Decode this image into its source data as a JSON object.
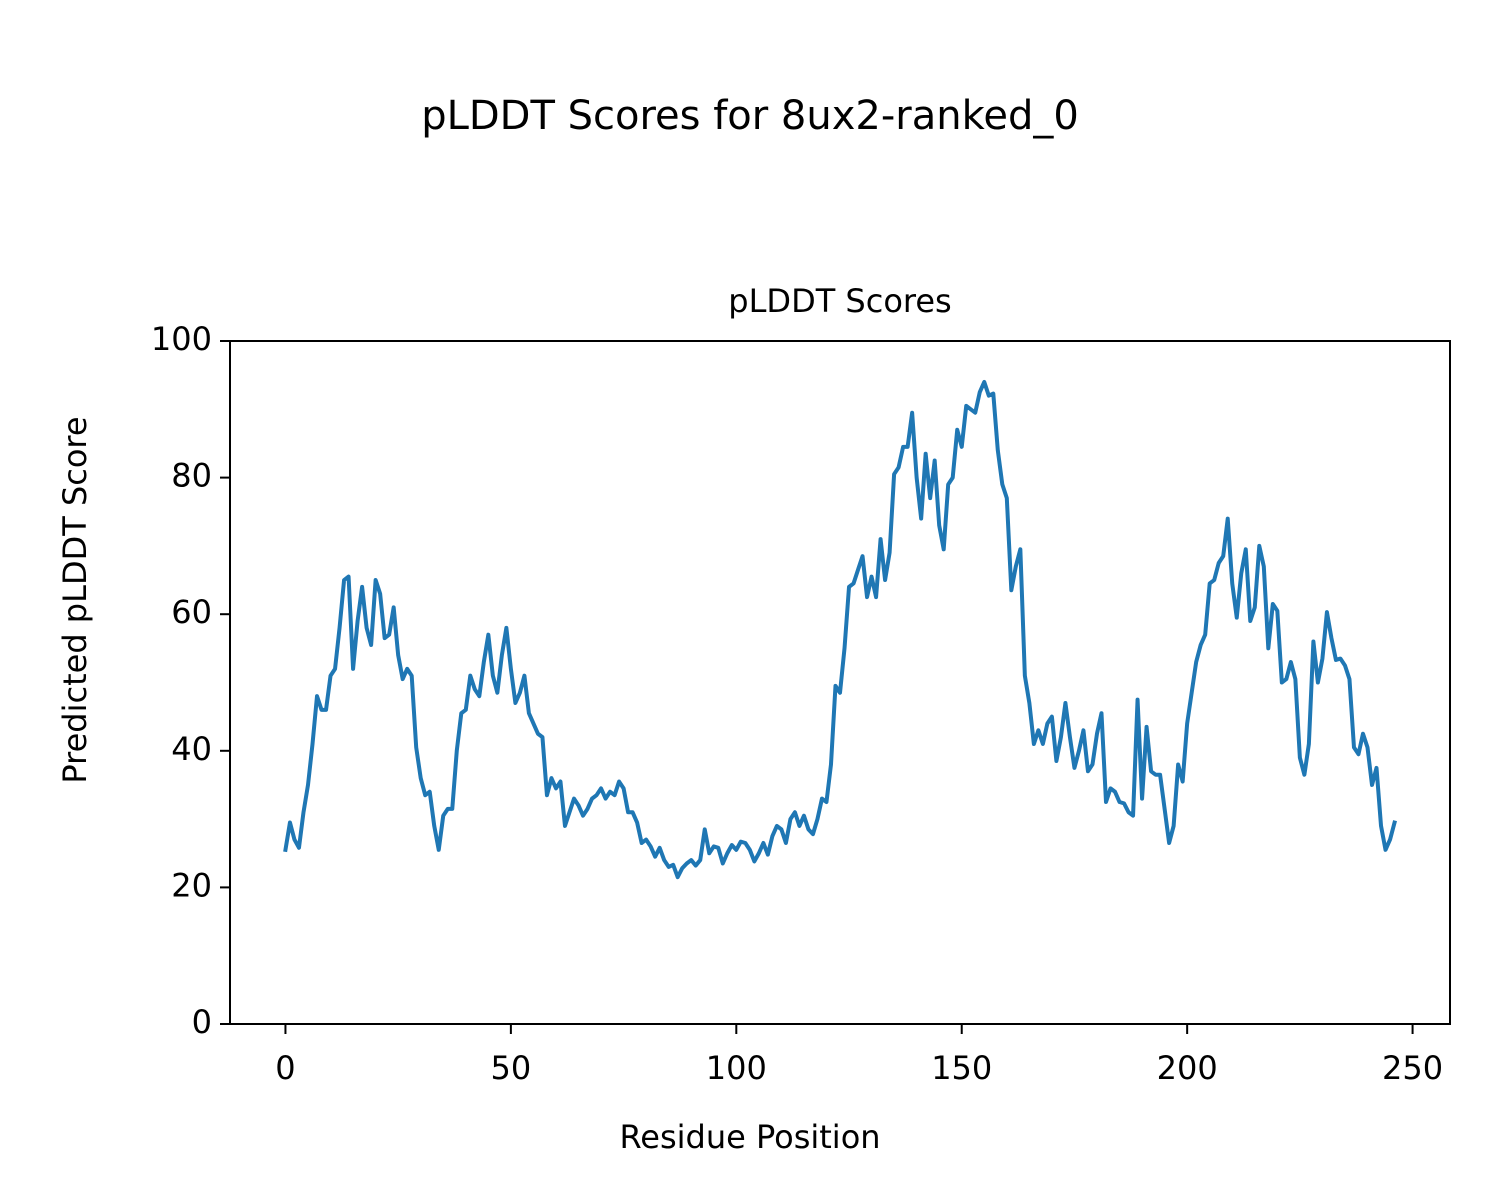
{
  "chart_data": {
    "type": "line",
    "suptitle": "pLDDT Scores for 8ux2-ranked_0",
    "title": "pLDDT Scores",
    "xlabel": "Residue Position",
    "ylabel": "Predicted pLDDT Score",
    "x": [
      0,
      1,
      2,
      3,
      4,
      5,
      6,
      7,
      8,
      9,
      10,
      11,
      12,
      13,
      14,
      15,
      16,
      17,
      18,
      19,
      20,
      21,
      22,
      23,
      24,
      25,
      26,
      27,
      28,
      29,
      30,
      31,
      32,
      33,
      34,
      35,
      36,
      37,
      38,
      39,
      40,
      41,
      42,
      43,
      44,
      45,
      46,
      47,
      48,
      49,
      50,
      51,
      52,
      53,
      54,
      55,
      56,
      57,
      58,
      59,
      60,
      61,
      62,
      63,
      64,
      65,
      66,
      67,
      68,
      69,
      70,
      71,
      72,
      73,
      74,
      75,
      76,
      77,
      78,
      79,
      80,
      81,
      82,
      83,
      84,
      85,
      86,
      87,
      88,
      89,
      90,
      91,
      92,
      93,
      94,
      95,
      96,
      97,
      98,
      99,
      100,
      101,
      102,
      103,
      104,
      105,
      106,
      107,
      108,
      109,
      110,
      111,
      112,
      113,
      114,
      115,
      116,
      117,
      118,
      119,
      120,
      121,
      122,
      123,
      124,
      125,
      126,
      127,
      128,
      129,
      130,
      131,
      132,
      133,
      134,
      135,
      136,
      137,
      138,
      139,
      140,
      141,
      142,
      143,
      144,
      145,
      146,
      147,
      148,
      149,
      150,
      151,
      152,
      153,
      154,
      155,
      156,
      157,
      158,
      159,
      160,
      161,
      162,
      163,
      164,
      165,
      166,
      167,
      168,
      169,
      170,
      171,
      172,
      173,
      174,
      175,
      176,
      177,
      178,
      179,
      180,
      181,
      182,
      183,
      184,
      185,
      186,
      187,
      188,
      189,
      190,
      191,
      192,
      193,
      194,
      195,
      196,
      197,
      198,
      199,
      200,
      201,
      202,
      203,
      204,
      205,
      206,
      207,
      208,
      209,
      210,
      211,
      212,
      213,
      214,
      215,
      216,
      217,
      218,
      219,
      220,
      221,
      222,
      223,
      224,
      225,
      226,
      227,
      228,
      229,
      230,
      231,
      232,
      233,
      234,
      235,
      236,
      237,
      238,
      239,
      240,
      241,
      242,
      243,
      244,
      245,
      246
    ],
    "series": [
      {
        "name": "pLDDT",
        "color": "#1f77b4",
        "values": [
          25.5,
          29.5,
          27,
          25.8,
          31,
          35,
          41,
          48,
          46,
          46,
          51,
          52,
          58,
          65,
          65.5,
          52,
          59,
          64,
          58,
          55.5,
          65,
          63,
          56.5,
          57,
          61,
          54,
          50.5,
          52,
          51,
          40.5,
          36,
          33.5,
          34,
          29,
          25.5,
          30.5,
          31.5,
          31.5,
          40,
          45.5,
          46,
          51,
          49,
          48,
          53,
          57,
          51,
          48.5,
          54,
          58,
          52,
          47,
          48.5,
          51,
          45.5,
          44,
          42.5,
          42,
          33.5,
          36,
          34.5,
          35.5,
          29,
          31,
          33,
          32,
          30.5,
          31.5,
          33,
          33.5,
          34.5,
          33,
          34,
          33.5,
          35.5,
          34.5,
          31,
          31,
          29.5,
          26.5,
          27,
          26,
          24.5,
          25.8,
          24,
          23,
          23.3,
          21.5,
          22.8,
          23.5,
          24,
          23.2,
          24,
          28.5,
          25,
          26,
          25.8,
          23.5,
          25,
          26.2,
          25.5,
          26.7,
          26.5,
          25.5,
          23.8,
          25,
          26.5,
          24.8,
          27.5,
          29,
          28.5,
          26.5,
          30,
          31,
          29,
          30.5,
          28.5,
          27.8,
          30,
          33,
          32.5,
          38,
          49.5,
          48.5,
          55,
          64,
          64.5,
          66.5,
          68.5,
          62.5,
          65.5,
          62.5,
          71,
          65,
          69,
          80.5,
          81.5,
          84.5,
          84.5,
          89.5,
          80,
          74,
          83.5,
          77,
          82.5,
          73,
          69.5,
          79,
          80,
          87,
          84.5,
          90.5,
          90,
          89.5,
          92.5,
          94,
          92,
          92.3,
          84,
          79,
          77,
          63.5,
          67,
          69.5,
          51,
          47,
          41,
          43,
          41,
          44,
          45,
          38.5,
          42,
          47,
          42,
          37.5,
          40,
          43,
          37,
          38,
          42.5,
          45.5,
          32.5,
          34.5,
          34,
          32.5,
          32.3,
          31,
          30.5,
          47.5,
          33,
          43.5,
          37,
          36.5,
          36.5,
          31.5,
          26.5,
          29,
          38,
          35.5,
          44,
          48.5,
          53,
          55.5,
          57,
          64.5,
          65,
          67.5,
          68.5,
          74,
          64.5,
          59.5,
          66,
          69.5,
          59,
          61,
          70,
          67,
          55,
          61.5,
          60.5,
          50,
          50.5,
          53,
          50.5,
          39,
          36.5,
          41,
          56,
          50,
          53.5,
          60.3,
          56.5,
          53.3,
          53.5,
          52.5,
          50.5,
          40.5,
          39.5,
          42.5,
          40.5,
          35,
          37.5,
          29,
          25.5,
          27,
          29.5
        ]
      }
    ],
    "xlim": [
      -12.3,
      258.3
    ],
    "xticks": [
      0,
      50,
      100,
      150,
      200,
      250
    ],
    "ylim": [
      0,
      100
    ],
    "yticks": [
      0,
      20,
      40,
      60,
      80,
      100
    ]
  }
}
